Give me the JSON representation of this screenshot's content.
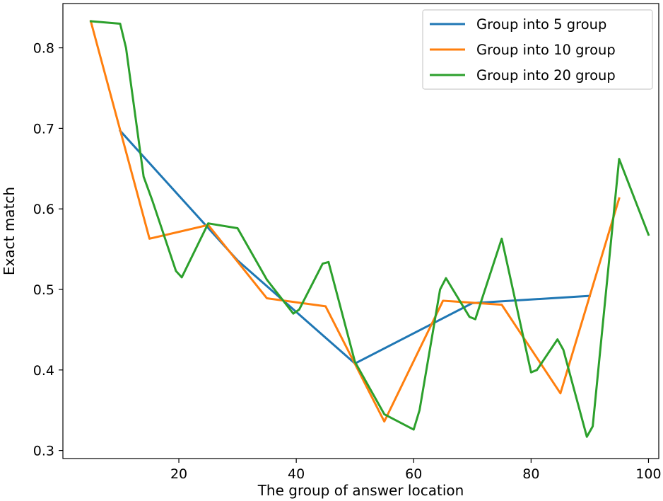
{
  "chart_data": {
    "type": "line",
    "title": "",
    "xlabel": "The group of answer location",
    "ylabel": "Exact match",
    "xlim": [
      0.25,
      101.75
    ],
    "ylim": [
      0.29,
      0.855
    ],
    "xticks": [
      20,
      40,
      60,
      80,
      100
    ],
    "xtick_labels": [
      "20",
      "40",
      "60",
      "80",
      "100"
    ],
    "yticks": [
      0.3,
      0.4,
      0.5,
      0.6,
      0.7,
      0.8
    ],
    "ytick_labels": [
      "0.3",
      "0.4",
      "0.5",
      "0.6",
      "0.7",
      "0.8"
    ],
    "grid": false,
    "legend_position": "top-right",
    "series": [
      {
        "name": "Group into 5 group",
        "color": "#1f77b4",
        "x": [
          10,
          30,
          50,
          70,
          90
        ],
        "y": [
          0.697,
          0.536,
          0.408,
          0.483,
          0.492
        ]
      },
      {
        "name": "Group into 10 group",
        "color": "#ff7f0e",
        "x": [
          5,
          15,
          25,
          35,
          45,
          55,
          65,
          75,
          85,
          95
        ],
        "y": [
          0.833,
          0.563,
          0.58,
          0.489,
          0.479,
          0.336,
          0.486,
          0.481,
          0.371,
          0.613
        ]
      },
      {
        "name": "Group into 20 group",
        "color": "#2ca02c",
        "x": [
          5,
          10,
          11,
          14,
          15.5,
          19.5,
          20.5,
          25,
          30,
          35,
          39.5,
          40.5,
          44.5,
          45.5,
          50,
          55,
          60,
          61,
          64.5,
          65.5,
          69.5,
          70.5,
          75,
          80,
          81,
          84.5,
          85.5,
          89.5,
          90.5,
          95,
          100
        ],
        "y": [
          0.833,
          0.83,
          0.8,
          0.64,
          0.61,
          0.523,
          0.515,
          0.582,
          0.576,
          0.512,
          0.47,
          0.475,
          0.532,
          0.534,
          0.41,
          0.345,
          0.326,
          0.35,
          0.5,
          0.514,
          0.466,
          0.463,
          0.563,
          0.397,
          0.4,
          0.438,
          0.425,
          0.317,
          0.33,
          0.662,
          0.568
        ]
      }
    ]
  }
}
